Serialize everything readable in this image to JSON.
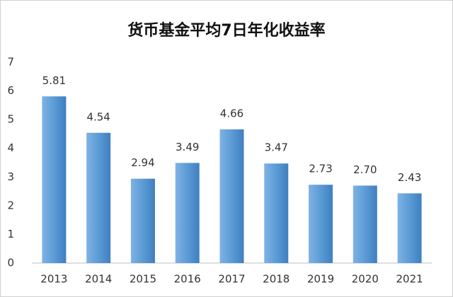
{
  "chart_data": {
    "type": "bar",
    "title": "货币基金平均7日年化收益率",
    "categories": [
      "2013",
      "2014",
      "2015",
      "2016",
      "2017",
      "2018",
      "2019",
      "2020",
      "2021"
    ],
    "values": [
      5.81,
      4.54,
      2.94,
      3.49,
      4.66,
      3.47,
      2.73,
      2.7,
      2.43
    ],
    "value_labels": [
      "5.81",
      "4.54",
      "2.94",
      "3.49",
      "4.66",
      "3.47",
      "2.73",
      "2.70",
      "2.43"
    ],
    "color": "#5b9bd5",
    "ylim": [
      0,
      7
    ],
    "yticks": [
      0,
      1,
      2,
      3,
      4,
      5,
      6,
      7
    ],
    "grid": false
  }
}
